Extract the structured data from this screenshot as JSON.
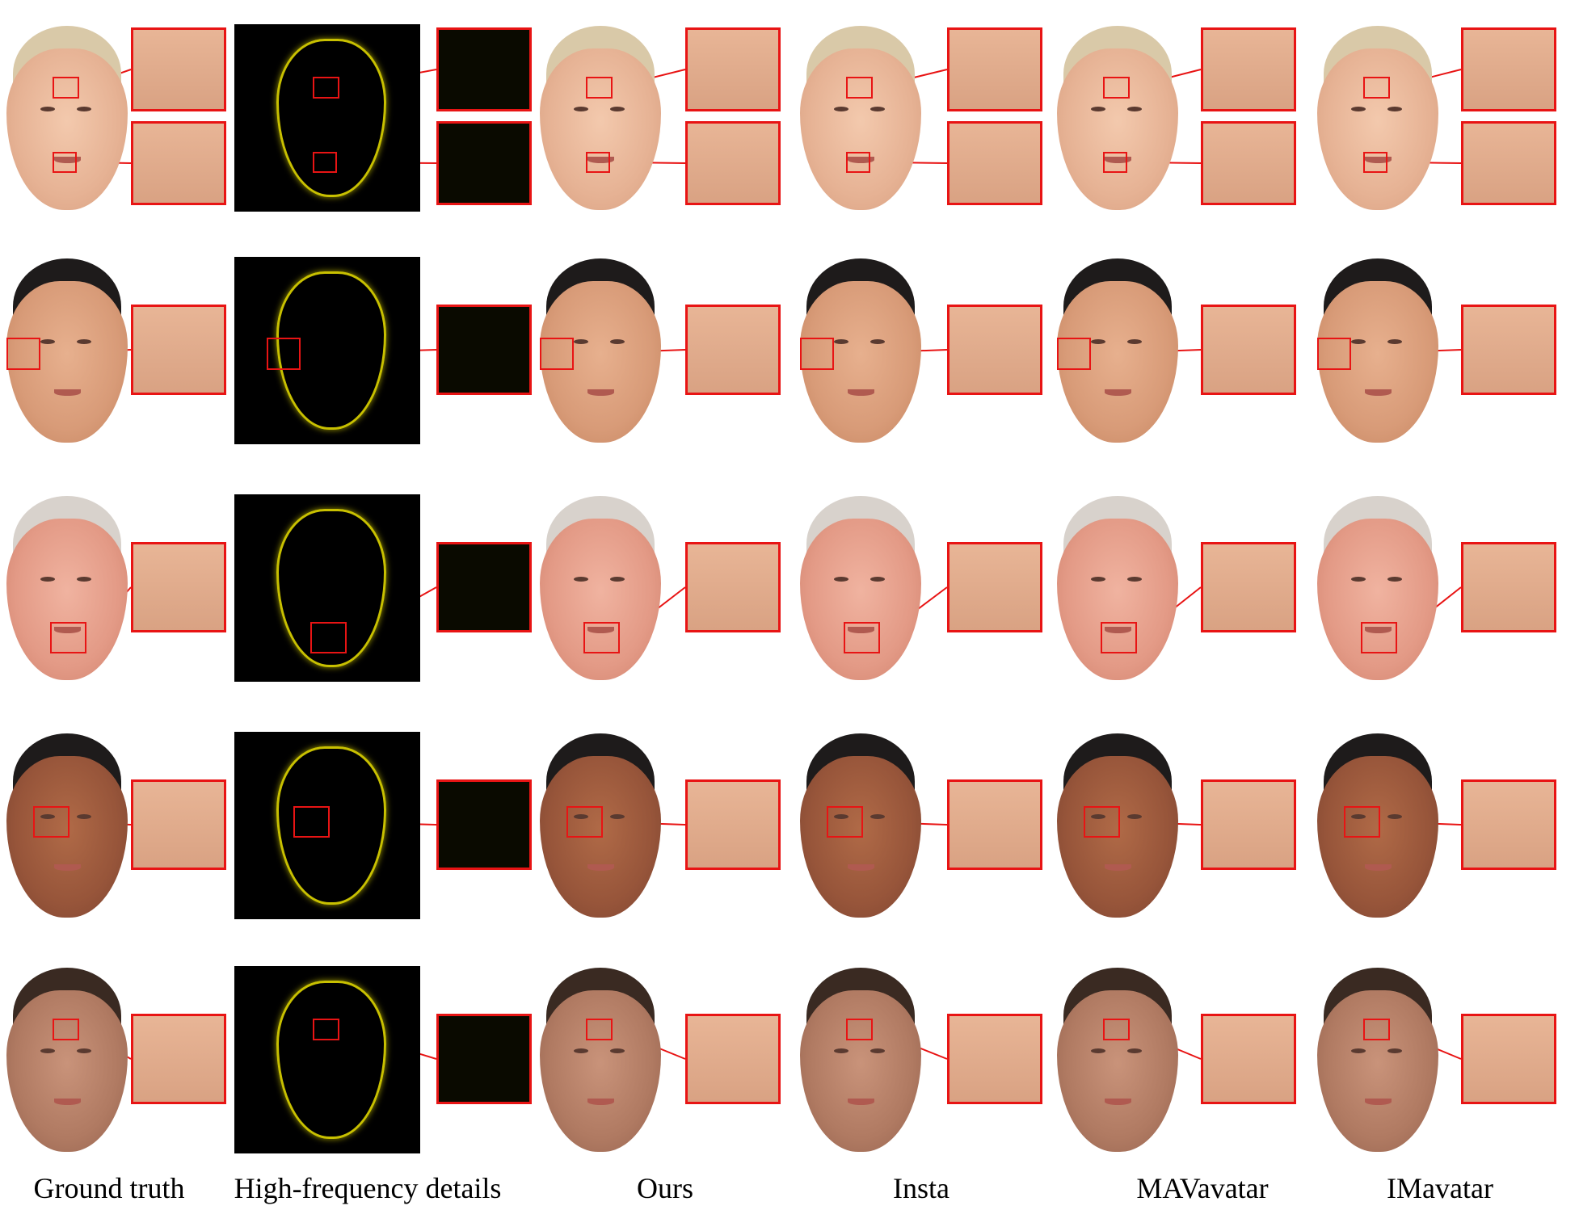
{
  "columns": [
    {
      "id": "ground-truth",
      "label": "Ground truth"
    },
    {
      "id": "high-frequency",
      "label": "High-frequency details"
    },
    {
      "id": "ours",
      "label": "Ours"
    },
    {
      "id": "insta",
      "label": "Insta"
    },
    {
      "id": "mavavatar",
      "label": "MAVavatar"
    },
    {
      "id": "imavatar",
      "label": "IMavatar"
    }
  ],
  "rows": [
    {
      "subject": "blond-man",
      "skin": "light",
      "hair": "blond",
      "zoom_regions": [
        "forehead",
        "chin"
      ]
    },
    {
      "subject": "man-with-glasses",
      "skin": "tan",
      "hair": "black",
      "zoom_regions": [
        "left-eye-glasses"
      ]
    },
    {
      "subject": "older-man",
      "skin": "pink",
      "hair": "gray",
      "zoom_regions": [
        "mouth"
      ]
    },
    {
      "subject": "dark-skinned-man",
      "skin": "dark",
      "hair": "black",
      "zoom_regions": [
        "right-eye"
      ]
    },
    {
      "subject": "brown-haired-man",
      "skin": "mid",
      "hair": "brown",
      "zoom_regions": [
        "forehead"
      ]
    }
  ],
  "colors": {
    "highlight_box": "#e81414",
    "hf_background": "#000000",
    "hf_edges": "#c8c000",
    "page_background": "#ffffff"
  }
}
